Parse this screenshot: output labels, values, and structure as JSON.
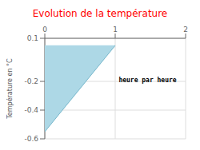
{
  "chart_data": {
    "type": "area",
    "title": "Evolution de la température",
    "y_label": "Température en °C",
    "annotation": {
      "text": "heure par heure",
      "x": 1.05,
      "y": -0.19
    },
    "xlim": [
      0,
      2
    ],
    "ylim": [
      -0.6,
      0.1
    ],
    "xticks": [
      0,
      1,
      2
    ],
    "yticks": [
      0.1,
      -0.2,
      -0.4,
      -0.6
    ],
    "grid": true,
    "series": [
      {
        "type": "area",
        "color": "#add8e6",
        "x": [
          0,
          0,
          1
        ],
        "values": [
          0.05,
          -0.55,
          0.05
        ]
      },
      {
        "type": "line",
        "color": "#7ab8cc",
        "x": [
          0,
          1
        ],
        "values": [
          -0.55,
          0.05
        ]
      }
    ]
  }
}
